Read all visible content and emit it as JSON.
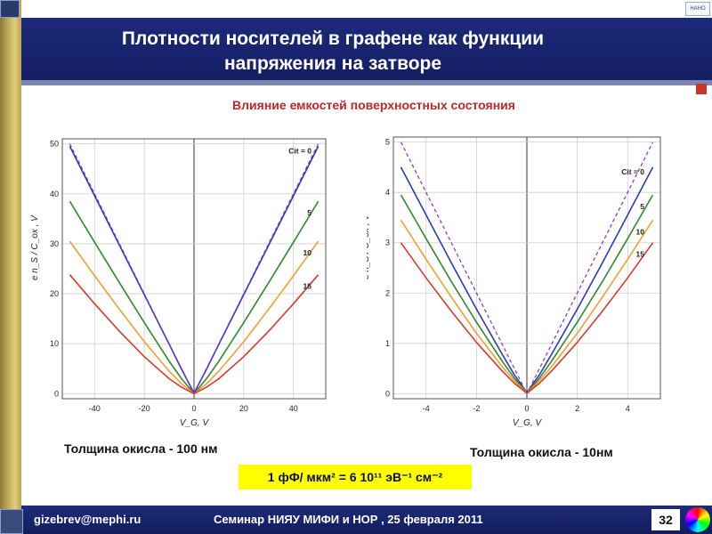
{
  "header": {
    "title_line1": "Плотности носителей в графене как функции",
    "title_line2": "напряжения на затворе",
    "logo_text": "НАНО"
  },
  "subtitle": "Влияние емкостей поверхностных  состояния",
  "captions": {
    "left": "Толщина окисла  - 100 нм",
    "right": "Толщина окисла  - 10нм"
  },
  "formula": "1 фФ/ мкм² = 6 10¹¹ эВ⁻¹ см⁻²",
  "footer": {
    "email": "gizebrev@mephi.ru",
    "seminar": "Семинар  НИЯУ МИФИ и НОР ,   25 февраля  2011",
    "page": "32"
  },
  "colors": {
    "blue": "#2b3bb5",
    "green": "#2e8b2e",
    "orange": "#f0a030",
    "red": "#d83a2a",
    "dashed": "#8a2be2",
    "title_bg": "#1c2a7a",
    "subtitle": "#c0282a",
    "formula_bg": "#ffff00"
  },
  "chart_data": [
    {
      "type": "line",
      "xlabel": "V_G, V",
      "ylabel": "e n_S / C_ox , V",
      "xlim": [
        -53,
        53
      ],
      "ylim": [
        -1,
        51
      ],
      "xticks": [
        -40,
        -20,
        0,
        20,
        40
      ],
      "yticks": [
        0,
        10,
        20,
        30,
        40,
        50
      ],
      "grid": true,
      "series": [
        {
          "name": "Cit = 0",
          "cit": 0,
          "color": "blue",
          "style": "solid",
          "x": [
            -50,
            -40,
            -30,
            -20,
            -10,
            -5,
            0,
            5,
            10,
            20,
            30,
            40,
            50
          ],
          "y": [
            49.5,
            39.6,
            29.7,
            19.8,
            9.9,
            4.9,
            0.1,
            4.9,
            9.9,
            19.8,
            29.7,
            39.6,
            49.5
          ]
        },
        {
          "name": "5",
          "cit": 5,
          "color": "green",
          "style": "solid",
          "x": [
            -50,
            -40,
            -30,
            -20,
            -10,
            -5,
            0,
            5,
            10,
            20,
            30,
            40,
            50
          ],
          "y": [
            38.5,
            30.3,
            22.2,
            14.2,
            6.5,
            3.0,
            0.0,
            3.0,
            6.5,
            14.2,
            22.2,
            30.3,
            38.5
          ]
        },
        {
          "name": "10",
          "cit": 10,
          "color": "orange",
          "style": "solid",
          "x": [
            -50,
            -40,
            -30,
            -20,
            -10,
            -5,
            0,
            5,
            10,
            20,
            30,
            40,
            50
          ],
          "y": [
            30.5,
            23.6,
            16.9,
            10.4,
            4.5,
            2.0,
            0.0,
            2.0,
            4.5,
            10.4,
            16.9,
            23.6,
            30.5
          ]
        },
        {
          "name": "15",
          "cit": 15,
          "color": "red",
          "style": "solid",
          "x": [
            -50,
            -40,
            -30,
            -20,
            -10,
            -5,
            0,
            5,
            10,
            20,
            30,
            40,
            50
          ],
          "y": [
            23.8,
            18.0,
            12.5,
            7.4,
            3.0,
            1.3,
            0.0,
            1.3,
            3.0,
            7.4,
            12.5,
            18.0,
            23.8
          ]
        },
        {
          "name": "",
          "cit": null,
          "color": "dashed",
          "style": "dashed",
          "x": [
            -50,
            0,
            50
          ],
          "y": [
            50,
            0,
            50
          ]
        }
      ],
      "labels": [
        "Cit = 0",
        "5",
        "10",
        "15"
      ]
    },
    {
      "type": "line",
      "xlabel": "V_G, V",
      "ylabel": "e n_S / C_ox , V",
      "xlim": [
        -5.3,
        5.3
      ],
      "ylim": [
        -0.1,
        5.1
      ],
      "xticks": [
        -4,
        -2,
        0,
        2,
        4
      ],
      "yticks": [
        0,
        1,
        2,
        3,
        4,
        5
      ],
      "grid": true,
      "series": [
        {
          "name": "Cit = 0",
          "cit": 0,
          "color": "blue",
          "style": "solid",
          "x": [
            -5,
            -4,
            -3,
            -2,
            -1,
            -0.5,
            0,
            0.5,
            1,
            2,
            3,
            4,
            5
          ],
          "y": [
            4.5,
            3.55,
            2.6,
            1.68,
            0.8,
            0.38,
            0.02,
            0.38,
            0.8,
            1.68,
            2.6,
            3.55,
            4.5
          ]
        },
        {
          "name": "5",
          "cit": 5,
          "color": "green",
          "style": "solid",
          "x": [
            -5,
            -4,
            -3,
            -2,
            -1,
            -0.5,
            0,
            0.5,
            1,
            2,
            3,
            4,
            5
          ],
          "y": [
            3.95,
            3.08,
            2.23,
            1.42,
            0.66,
            0.31,
            0.02,
            0.31,
            0.66,
            1.42,
            2.23,
            3.08,
            3.95
          ]
        },
        {
          "name": "10",
          "cit": 10,
          "color": "orange",
          "style": "solid",
          "x": [
            -5,
            -4,
            -3,
            -2,
            -1,
            -0.5,
            0,
            0.5,
            1,
            2,
            3,
            4,
            5
          ],
          "y": [
            3.45,
            2.67,
            1.92,
            1.2,
            0.55,
            0.26,
            0.01,
            0.26,
            0.55,
            1.2,
            1.92,
            2.67,
            3.45
          ]
        },
        {
          "name": "15",
          "cit": 15,
          "color": "red",
          "style": "solid",
          "x": [
            -5,
            -4,
            -3,
            -2,
            -1,
            -0.5,
            0,
            0.5,
            1,
            2,
            3,
            4,
            5
          ],
          "y": [
            3.0,
            2.3,
            1.64,
            1.02,
            0.46,
            0.21,
            0.01,
            0.21,
            0.46,
            1.02,
            1.64,
            2.3,
            3.0
          ]
        },
        {
          "name": "",
          "cit": null,
          "color": "dashed",
          "style": "dashed",
          "x": [
            -5,
            0,
            5
          ],
          "y": [
            5,
            0,
            5
          ]
        }
      ],
      "labels": [
        "Cit = 0",
        "5",
        "10",
        "15"
      ]
    }
  ]
}
